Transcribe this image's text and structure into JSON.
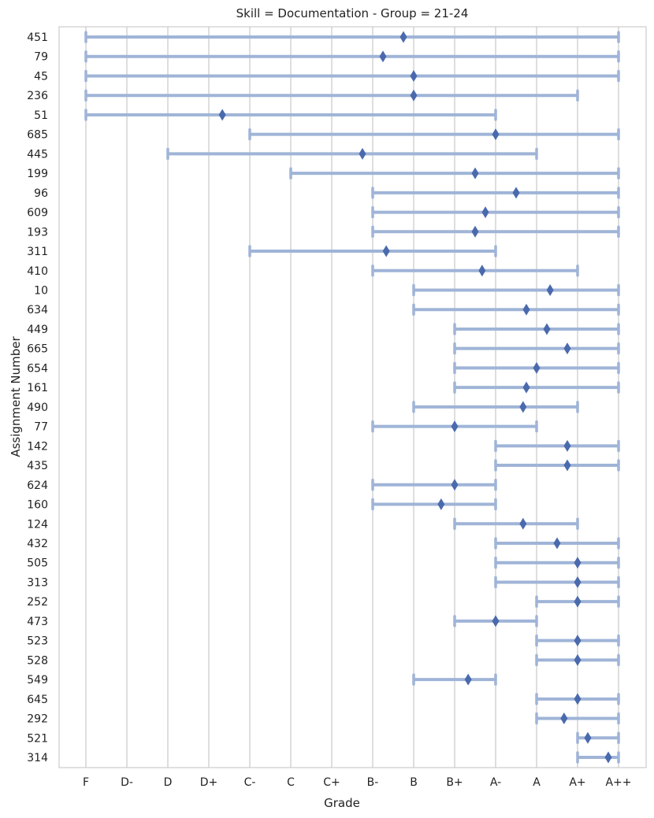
{
  "chart_data": {
    "type": "range",
    "title": "Skill = Documentation - Group = 21-24",
    "xlabel": "Grade",
    "ylabel": "Assignment Number",
    "grades": [
      "F",
      "D-",
      "D",
      "D+",
      "C-",
      "C",
      "C+",
      "B-",
      "B",
      "B+",
      "A-",
      "A",
      "A+",
      "A++"
    ],
    "series": [
      {
        "assignment": "451",
        "min": 0,
        "max": 13,
        "mean": 7.75
      },
      {
        "assignment": "79",
        "min": 0,
        "max": 13,
        "mean": 7.25
      },
      {
        "assignment": "45",
        "min": 0,
        "max": 13,
        "mean": 8.0
      },
      {
        "assignment": "236",
        "min": 0,
        "max": 12,
        "mean": 8.0
      },
      {
        "assignment": "51",
        "min": 0,
        "max": 10,
        "mean": 3.33
      },
      {
        "assignment": "685",
        "min": 4,
        "max": 13,
        "mean": 10.0
      },
      {
        "assignment": "445",
        "min": 2,
        "max": 11,
        "mean": 6.75
      },
      {
        "assignment": "199",
        "min": 5,
        "max": 13,
        "mean": 9.5
      },
      {
        "assignment": "96",
        "min": 7,
        "max": 13,
        "mean": 10.5
      },
      {
        "assignment": "609",
        "min": 7,
        "max": 13,
        "mean": 9.75
      },
      {
        "assignment": "193",
        "min": 7,
        "max": 13,
        "mean": 9.5
      },
      {
        "assignment": "311",
        "min": 4,
        "max": 10,
        "mean": 7.33
      },
      {
        "assignment": "410",
        "min": 7,
        "max": 12,
        "mean": 9.67
      },
      {
        "assignment": "10",
        "min": 8,
        "max": 13,
        "mean": 11.33
      },
      {
        "assignment": "634",
        "min": 8,
        "max": 13,
        "mean": 10.75
      },
      {
        "assignment": "449",
        "min": 9,
        "max": 13,
        "mean": 11.25
      },
      {
        "assignment": "665",
        "min": 9,
        "max": 13,
        "mean": 11.75
      },
      {
        "assignment": "654",
        "min": 9,
        "max": 13,
        "mean": 11.0
      },
      {
        "assignment": "161",
        "min": 9,
        "max": 13,
        "mean": 10.75
      },
      {
        "assignment": "490",
        "min": 8,
        "max": 12,
        "mean": 10.67
      },
      {
        "assignment": "77",
        "min": 7,
        "max": 11,
        "mean": 9.0
      },
      {
        "assignment": "142",
        "min": 10,
        "max": 13,
        "mean": 11.75
      },
      {
        "assignment": "435",
        "min": 10,
        "max": 13,
        "mean": 11.75
      },
      {
        "assignment": "624",
        "min": 7,
        "max": 10,
        "mean": 9.0
      },
      {
        "assignment": "160",
        "min": 7,
        "max": 10,
        "mean": 8.67
      },
      {
        "assignment": "124",
        "min": 9,
        "max": 12,
        "mean": 10.67
      },
      {
        "assignment": "432",
        "min": 10,
        "max": 13,
        "mean": 11.5
      },
      {
        "assignment": "505",
        "min": 10,
        "max": 13,
        "mean": 12.0
      },
      {
        "assignment": "313",
        "min": 10,
        "max": 13,
        "mean": 12.0
      },
      {
        "assignment": "252",
        "min": 11,
        "max": 13,
        "mean": 12.0
      },
      {
        "assignment": "473",
        "min": 9,
        "max": 11,
        "mean": 10.0
      },
      {
        "assignment": "523",
        "min": 11,
        "max": 13,
        "mean": 12.0
      },
      {
        "assignment": "528",
        "min": 11,
        "max": 13,
        "mean": 12.0
      },
      {
        "assignment": "549",
        "min": 8,
        "max": 10,
        "mean": 9.33
      },
      {
        "assignment": "645",
        "min": 11,
        "max": 13,
        "mean": 12.0
      },
      {
        "assignment": "292",
        "min": 11,
        "max": 13,
        "mean": 11.67
      },
      {
        "assignment": "521",
        "min": 12,
        "max": 13,
        "mean": 12.25
      },
      {
        "assignment": "314",
        "min": 12,
        "max": 13,
        "mean": 12.75
      }
    ],
    "colors": {
      "range": "#9fb4d7",
      "mean": "#4a6aad",
      "grid": "#cccccc",
      "frame": "#cccccc"
    }
  }
}
